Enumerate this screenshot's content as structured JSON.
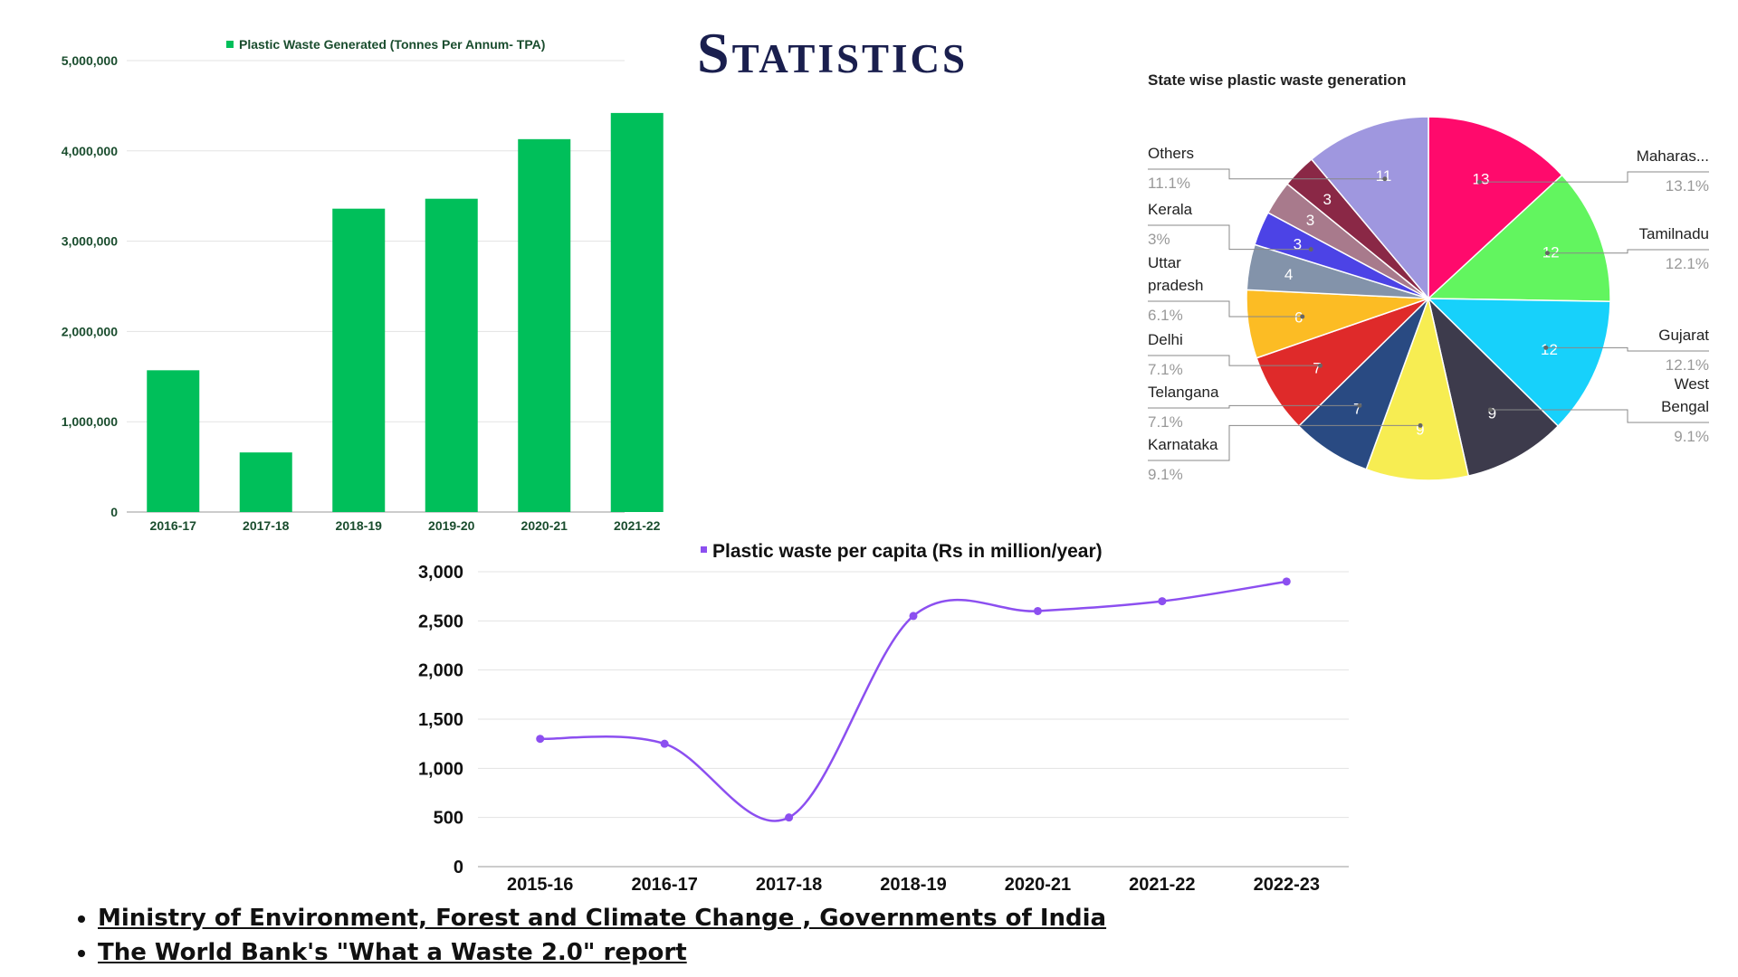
{
  "page": {
    "title": "Statistics",
    "sources": [
      "Ministry of Environment, Forest and Climate Change , Governments of India",
      "The World Bank's \"What a Waste 2.0\" report"
    ]
  },
  "chart_data": [
    {
      "type": "bar",
      "title": "",
      "legend": "Plastic Waste Generated (Tonnes Per Annum- TPA)",
      "legend_position": "top",
      "categories": [
        "2016-17",
        "2017-18",
        "2018-19",
        "2019-20",
        "2020-21",
        "2021-22"
      ],
      "values": [
        1570000,
        660000,
        3360000,
        3470000,
        4130000,
        4420000
      ],
      "yticks": [
        "0",
        "1,000,000",
        "2,000,000",
        "3,000,000",
        "4,000,000",
        "5,000,000"
      ],
      "ylim": [
        0,
        5000000
      ],
      "grid": true,
      "color": "#00bf5a"
    },
    {
      "type": "pie",
      "title": "State wise plastic waste generation",
      "slices": [
        {
          "label": "Maharas...",
          "value": 13,
          "percent": "13.1%",
          "color": "#ff0a6c"
        },
        {
          "label": "Tamilnadu",
          "value": 12,
          "percent": "12.1%",
          "color": "#62f55f"
        },
        {
          "label": "Gujarat",
          "value": 12,
          "percent": "12.1%",
          "color": "#17d1fb"
        },
        {
          "label": "West Bengal",
          "value": 9,
          "percent": "9.1%",
          "color": "#3d3b4c"
        },
        {
          "label": "Karnataka",
          "value": 9,
          "percent": "9.1%",
          "color": "#f7ed52"
        },
        {
          "label": "Telangana",
          "value": 7,
          "percent": "7.1%",
          "color": "#294a82"
        },
        {
          "label": "Delhi",
          "value": 7,
          "percent": "7.1%",
          "color": "#df2a2a"
        },
        {
          "label": "Uttar pradesh",
          "value": 6,
          "percent": "6.1%",
          "color": "#fcbc24"
        },
        {
          "label": "",
          "value": 4,
          "percent": "",
          "color": "#8393aa"
        },
        {
          "label": "Kerala",
          "value": 3,
          "percent": "3%",
          "color": "#4c43e6"
        },
        {
          "label": "",
          "value": 3,
          "percent": "",
          "color": "#a87a8c"
        },
        {
          "label": "",
          "value": 3,
          "percent": "",
          "color": "#8a2846"
        },
        {
          "label": "Others",
          "value": 11,
          "percent": "11.1%",
          "color": "#9f97df"
        }
      ]
    },
    {
      "type": "line",
      "title": "",
      "legend": "Plastic waste per capita (Rs in million/year)",
      "legend_position": "top",
      "categories": [
        "2015-16",
        "2016-17",
        "2017-18",
        "2018-19",
        "2020-21",
        "2021-22",
        "2022-23"
      ],
      "values": [
        1300,
        1250,
        500,
        2550,
        2600,
        2700,
        2900
      ],
      "yticks": [
        "0",
        "500",
        "1,000",
        "1,500",
        "2,000",
        "2,500",
        "3,000"
      ],
      "ylim": [
        0,
        3000
      ],
      "grid": true,
      "color": "#8c4ff0"
    }
  ]
}
